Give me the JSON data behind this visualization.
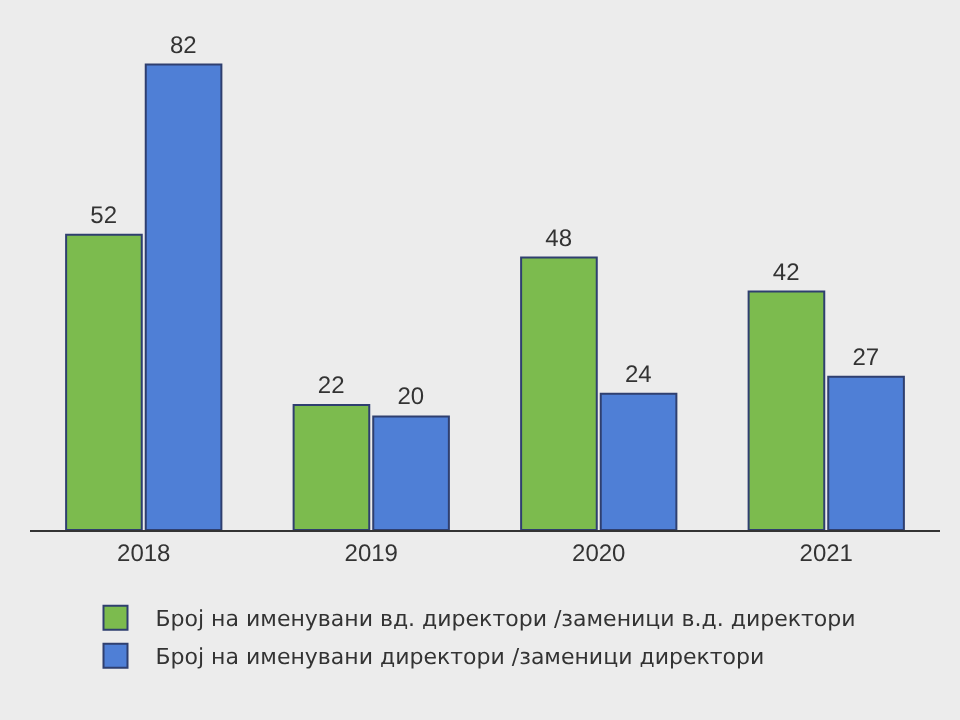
{
  "chart_data": {
    "type": "bar",
    "categories": [
      "2018",
      "2019",
      "2020",
      "2021"
    ],
    "series": [
      {
        "name": "Број на именувани вд. директори /заменици в.д. директори",
        "color": "#7cbb4e",
        "values": [
          52,
          22,
          48,
          42
        ]
      },
      {
        "name": "Број на именувани директори /заменици директори",
        "color": "#4f7fd6",
        "values": [
          82,
          20,
          24,
          27
        ]
      }
    ],
    "data_labels": true,
    "legend": "bottom"
  }
}
